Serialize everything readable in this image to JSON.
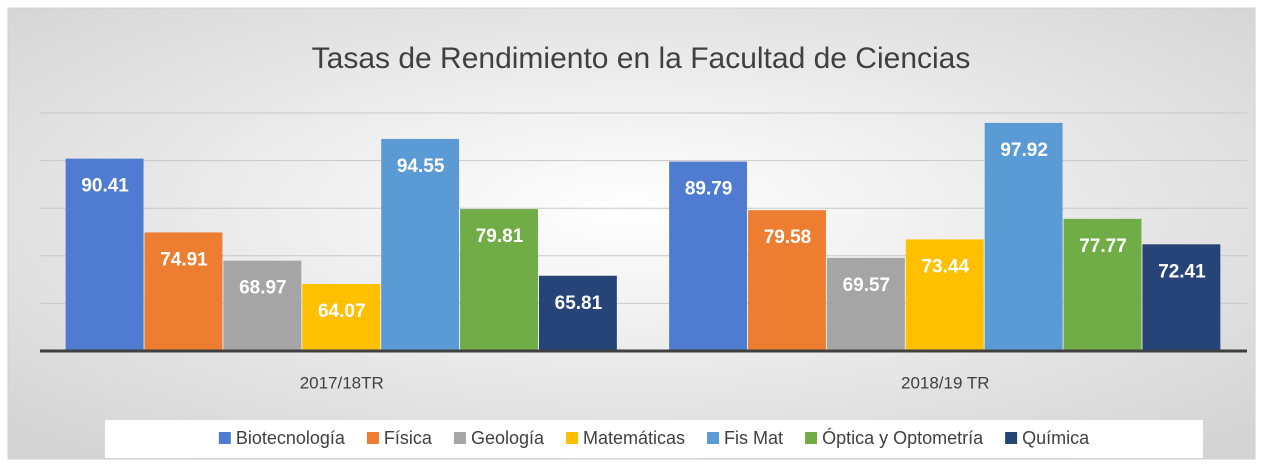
{
  "chart_data": {
    "type": "bar",
    "title": "Tasas de Rendimiento en la Facultad de Ciencias",
    "categories": [
      "2017/18TR",
      "2018/19 TR"
    ],
    "series": [
      {
        "name": "Biotecnología",
        "color": "#4f7bd0",
        "values": [
          90.41,
          89.79
        ]
      },
      {
        "name": "Física",
        "color": "#ed7d31",
        "values": [
          74.91,
          79.58
        ]
      },
      {
        "name": "Geología",
        "color": "#a5a5a5",
        "values": [
          68.97,
          69.57
        ]
      },
      {
        "name": "Matemáticas",
        "color": "#ffc000",
        "values": [
          64.07,
          73.44
        ]
      },
      {
        "name": "Fis Mat",
        "color": "#5b9bd5",
        "values": [
          94.55,
          97.92
        ]
      },
      {
        "name": "Óptica y Optometría",
        "color": "#70ad47",
        "values": [
          79.81,
          77.77
        ]
      },
      {
        "name": "Química",
        "color": "#264478",
        "values": [
          65.81,
          72.41
        ]
      }
    ],
    "ylim": [
      50,
      100
    ],
    "yticks": [
      50,
      60,
      70,
      80,
      90,
      100
    ],
    "grid": true,
    "legend": "bottom"
  }
}
